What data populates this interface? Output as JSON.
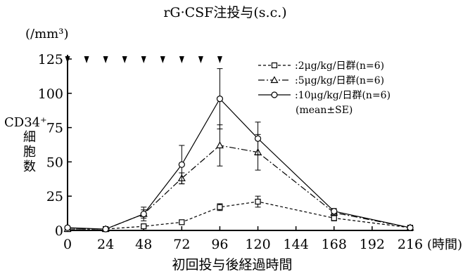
{
  "chart_data": {
    "type": "line",
    "title": "rG·CSF注投与(s.c.)",
    "ylabel_unit": "(/mm³)",
    "ylabel": "CD34⁺\n細\n胞\n数",
    "xlabel": "初回投与後経過時間",
    "x_unit": "(時間)",
    "xlim": [
      0,
      216
    ],
    "ylim": [
      0,
      125
    ],
    "x_ticks": [
      0,
      24,
      48,
      72,
      96,
      120,
      144,
      168,
      192,
      216
    ],
    "y_ticks": [
      0,
      25,
      50,
      75,
      100,
      125
    ],
    "dosing_times": [
      0,
      12,
      24,
      36,
      48,
      60,
      72,
      84,
      96
    ],
    "grid": false,
    "legend_position": "top-right",
    "legend_note": "(mean±SE)",
    "series": [
      {
        "name": "2μg/kg/日群(n=6)",
        "legend_prefix": "- - ◻ - - :",
        "marker": "square",
        "dash": "dashed",
        "points": [
          {
            "x": 0,
            "y": 1,
            "err": 0.5
          },
          {
            "x": 24,
            "y": 1,
            "err": 0.5
          },
          {
            "x": 48,
            "y": 3,
            "err": 1
          },
          {
            "x": 72,
            "y": 6,
            "err": 1
          },
          {
            "x": 96,
            "y": 17,
            "err": 2.5
          },
          {
            "x": 120,
            "y": 21,
            "err": 4
          },
          {
            "x": 168,
            "y": 9,
            "err": 2
          },
          {
            "x": 216,
            "y": 2,
            "err": 0.5
          }
        ]
      },
      {
        "name": "5μg/kg/日群(n=6)",
        "legend_prefix": "—△— :",
        "marker": "triangle",
        "dash": "dashdot",
        "points": [
          {
            "x": 0,
            "y": 1,
            "err": 0.5
          },
          {
            "x": 24,
            "y": 1,
            "err": 0.5
          },
          {
            "x": 48,
            "y": 12,
            "err": 3
          },
          {
            "x": 72,
            "y": 38,
            "err": 4
          },
          {
            "x": 96,
            "y": 62,
            "err": 15
          },
          {
            "x": 120,
            "y": 57,
            "err": 13
          },
          {
            "x": 168,
            "y": 13,
            "err": 2
          },
          {
            "x": 216,
            "y": 2,
            "err": 0.5
          }
        ]
      },
      {
        "name": "10μg/kg/日群(n=6)",
        "legend_prefix": "—○— :",
        "marker": "circle",
        "dash": "solid",
        "points": [
          {
            "x": 0,
            "y": 2,
            "err": 0.5
          },
          {
            "x": 24,
            "y": 1,
            "err": 0.5
          },
          {
            "x": 48,
            "y": 12,
            "err": 5
          },
          {
            "x": 72,
            "y": 48,
            "err": 14
          },
          {
            "x": 96,
            "y": 96,
            "err": 22
          },
          {
            "x": 120,
            "y": 67,
            "err": 12
          },
          {
            "x": 168,
            "y": 14,
            "err": 2
          },
          {
            "x": 216,
            "y": 2,
            "err": 0.5
          }
        ]
      }
    ]
  }
}
